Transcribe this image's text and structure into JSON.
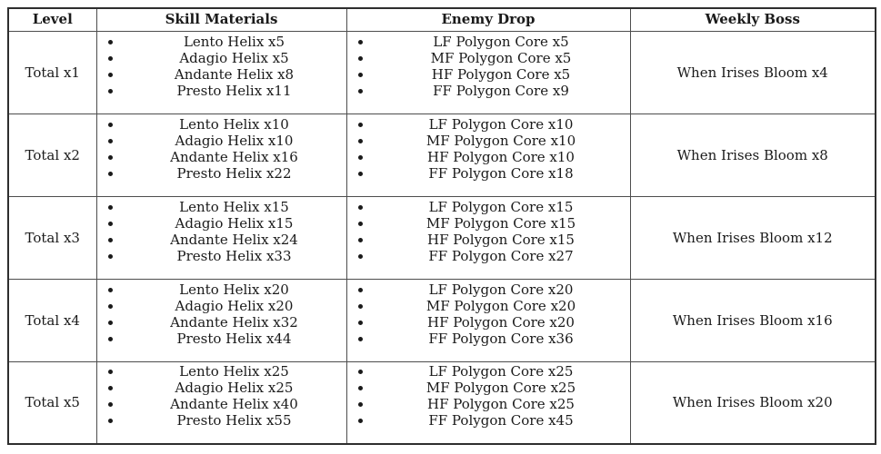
{
  "colors": {
    "background": "#ffffff",
    "border_outer": "#2e2e2e",
    "border_inner": "#4d4d4d",
    "text": "#1a1a1a"
  },
  "table": {
    "headers": [
      "Level",
      "Skill Materials",
      "Enemy Drop",
      "Weekly Boss"
    ],
    "rows": [
      {
        "level": "Total x1",
        "skill_materials": [
          "Lento Helix x5",
          "Adagio Helix x5",
          "Andante Helix x8",
          "Presto Helix x11"
        ],
        "enemy_drop": [
          "LF Polygon Core x5",
          "MF Polygon Core x5",
          "HF Polygon Core x5",
          "FF Polygon Core x9"
        ],
        "weekly_boss": "When Irises Bloom x4"
      },
      {
        "level": "Total x2",
        "skill_materials": [
          "Lento Helix x10",
          "Adagio Helix x10",
          "Andante Helix x16",
          "Presto Helix x22"
        ],
        "enemy_drop": [
          "LF Polygon Core x10",
          "MF Polygon Core x10",
          "HF Polygon Core x10",
          "FF Polygon Core x18"
        ],
        "weekly_boss": "When Irises Bloom x8"
      },
      {
        "level": "Total x3",
        "skill_materials": [
          "Lento Helix x15",
          "Adagio Helix x15",
          "Andante Helix x24",
          "Presto Helix x33"
        ],
        "enemy_drop": [
          "LF Polygon Core x15",
          "MF Polygon Core x15",
          "HF Polygon Core x15",
          "FF Polygon Core x27"
        ],
        "weekly_boss": "When Irises Bloom x12"
      },
      {
        "level": "Total x4",
        "skill_materials": [
          "Lento Helix x20",
          "Adagio Helix x20",
          "Andante Helix x32",
          "Presto Helix x44"
        ],
        "enemy_drop": [
          "LF Polygon Core x20",
          "MF Polygon Core x20",
          "HF Polygon Core x20",
          "FF Polygon Core x36"
        ],
        "weekly_boss": "When Irises Bloom x16"
      },
      {
        "level": "Total x5",
        "skill_materials": [
          "Lento Helix x25",
          "Adagio Helix x25",
          "Andante Helix x40",
          "Presto Helix x55"
        ],
        "enemy_drop": [
          "LF Polygon Core x25",
          "MF Polygon Core x25",
          "HF Polygon Core x25",
          "FF Polygon Core x45"
        ],
        "weekly_boss": "When Irises Bloom x20"
      }
    ]
  }
}
